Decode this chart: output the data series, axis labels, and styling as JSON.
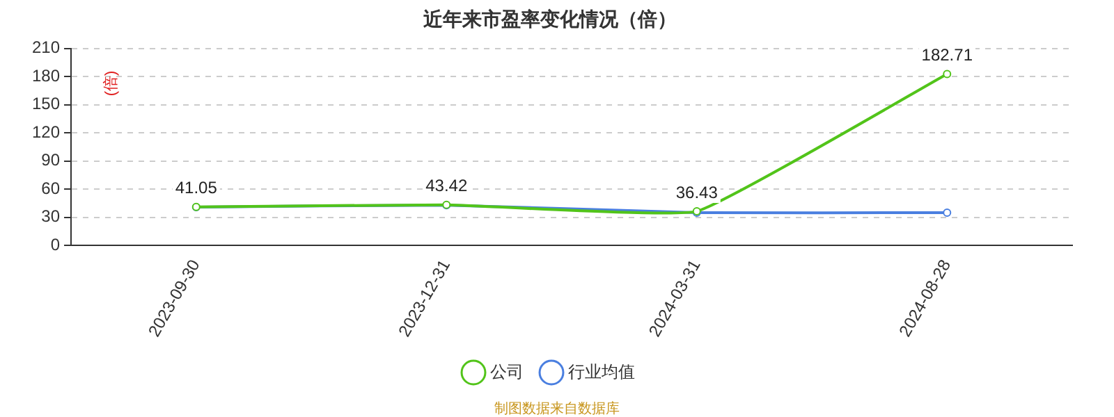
{
  "chart_data": {
    "type": "line",
    "title": "近年来市盈率变化情况（倍）",
    "ylabel": "(倍)",
    "categories": [
      "2023-09-30",
      "2023-12-31",
      "2024-03-31",
      "2024-08-28"
    ],
    "series": [
      {
        "name": "公司",
        "color": "#52c41a",
        "values": [
          41.05,
          43.42,
          36.43,
          182.71
        ],
        "value_labels": [
          "41.05",
          "43.42",
          "36.43",
          "182.71"
        ]
      },
      {
        "name": "行业均值",
        "color": "#4a7fe0",
        "values": [
          41,
          43,
          35,
          35
        ]
      }
    ],
    "ylim": [
      0,
      210
    ],
    "yticks": [
      0,
      30,
      60,
      90,
      120,
      150,
      180,
      210
    ],
    "grid": "y",
    "legend": "bottom",
    "marker": "circle",
    "line_style": "solid",
    "annotations": [
      "制图数据来自数据库"
    ]
  }
}
